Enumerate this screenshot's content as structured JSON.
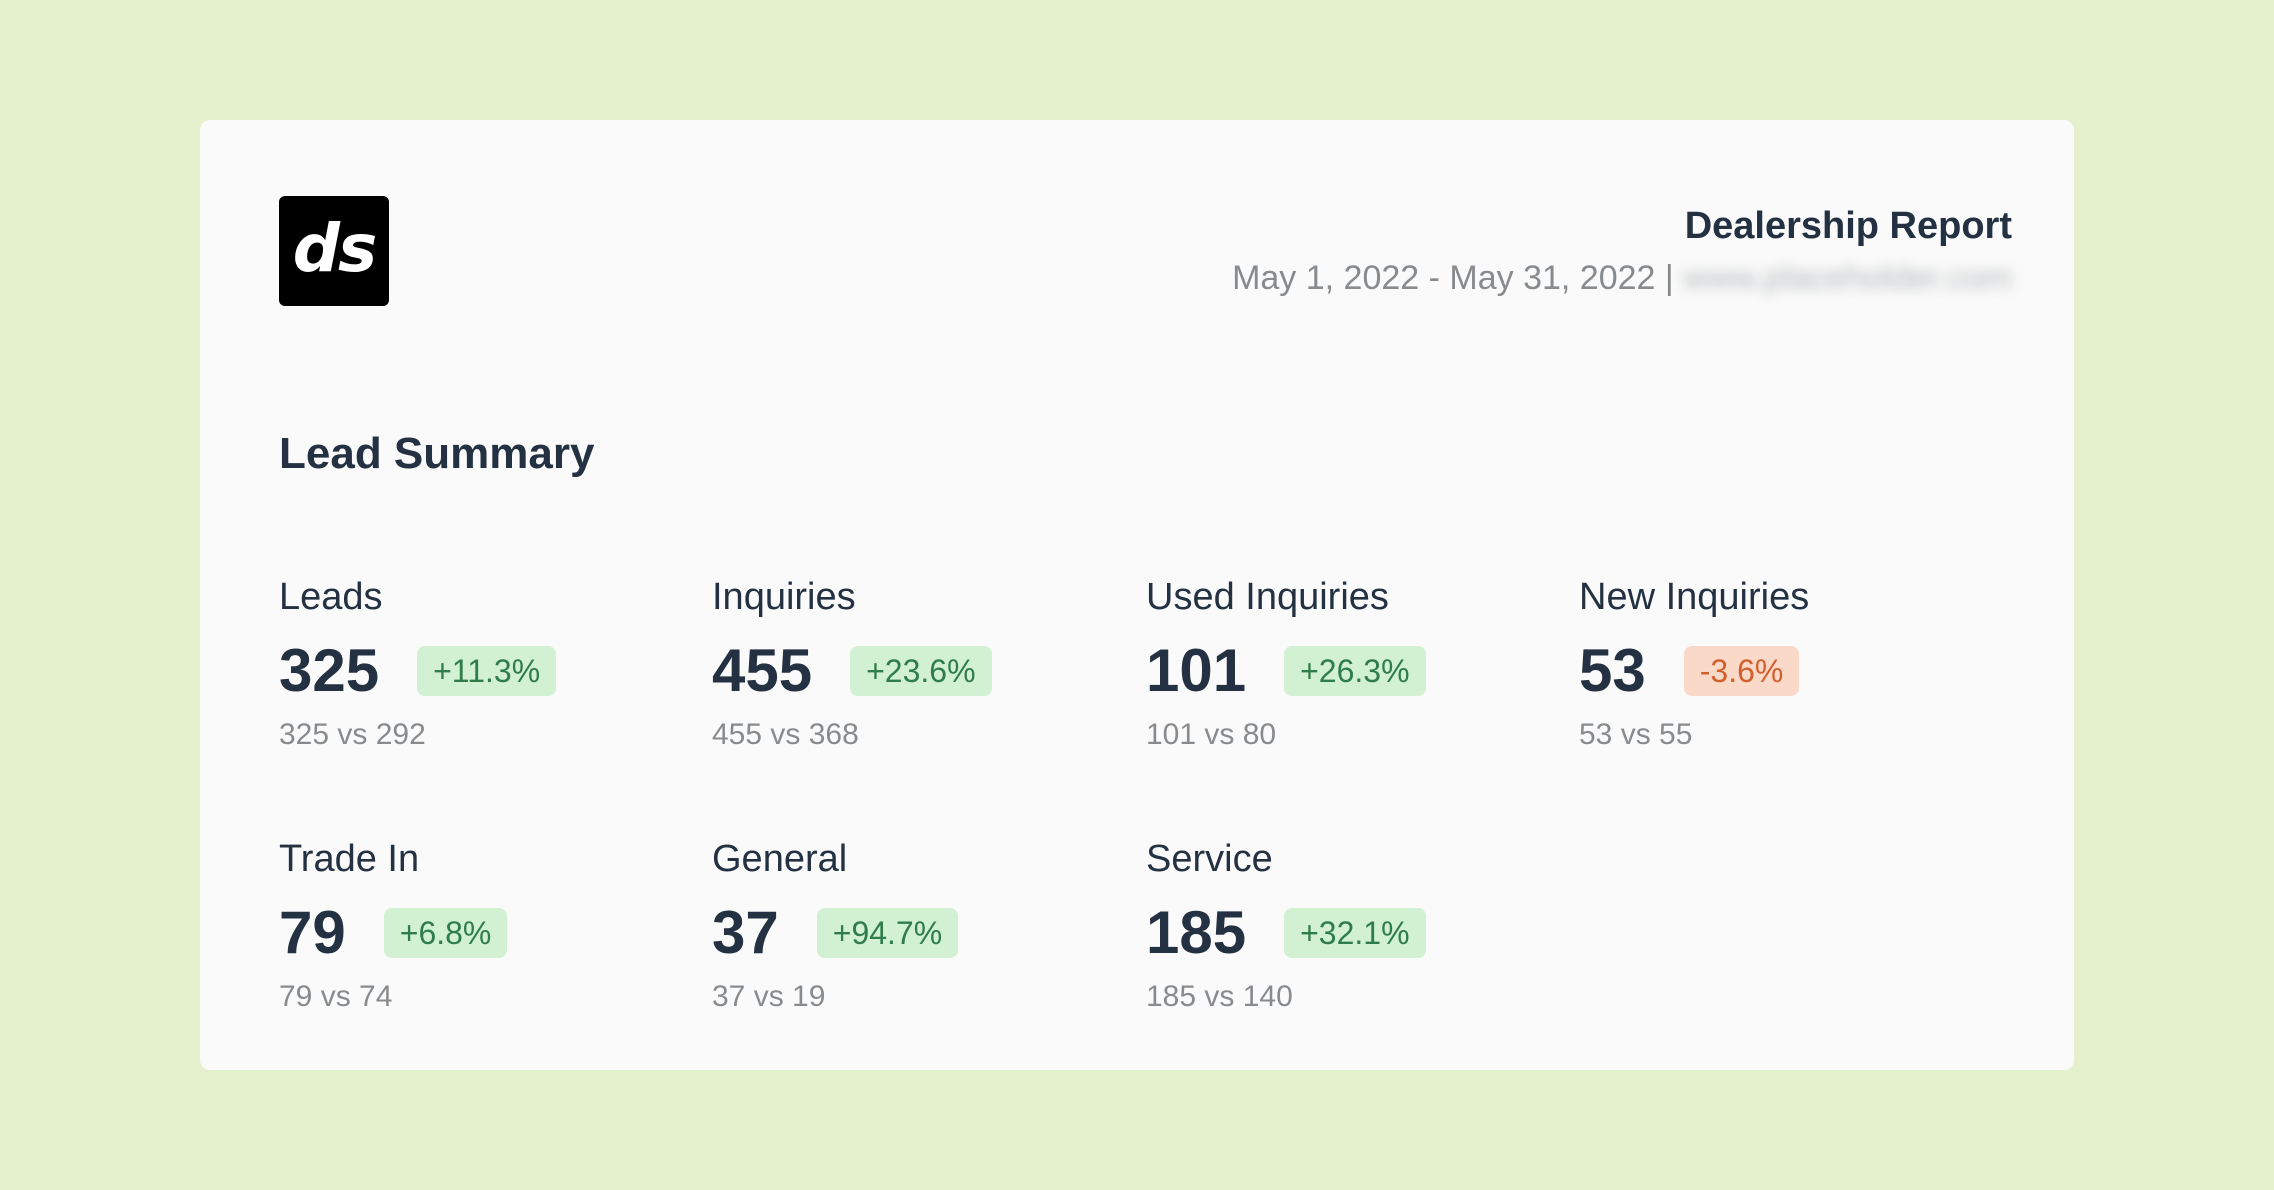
{
  "logo": {
    "text": "ds"
  },
  "header": {
    "title": "Dealership Report",
    "date_range": "May 1, 2022 - May 31, 2022 |",
    "website_blurred": "www.placeholder.com"
  },
  "section": {
    "title": "Lead Summary"
  },
  "metrics": [
    {
      "label": "Leads",
      "value": "325",
      "change": "+11.3%",
      "compare": "325 vs 292"
    },
    {
      "label": "Inquiries",
      "value": "455",
      "change": "+23.6%",
      "compare": "455 vs 368"
    },
    {
      "label": "Used Inquiries",
      "value": "101",
      "change": "+26.3%",
      "compare": "101 vs 80"
    },
    {
      "label": "New Inquiries",
      "value": "53",
      "change": "-3.6%",
      "compare": "53 vs 55"
    },
    {
      "label": "Trade In",
      "value": "79",
      "change": "+6.8%",
      "compare": "79 vs 74"
    },
    {
      "label": "General",
      "value": "37",
      "change": "+94.7%",
      "compare": "37 vs 19"
    },
    {
      "label": "Service",
      "value": "185",
      "change": "+32.1%",
      "compare": "185 vs 140"
    }
  ],
  "colors": {
    "page_background": "#e4f1cc",
    "card_background": "#fafafa",
    "text_primary": "#243142",
    "text_muted": "#888b8e",
    "badge_positive_bg": "#d2f0d2",
    "badge_positive_text": "#2f7d4a",
    "badge_negative_bg": "#fbd9c8",
    "badge_negative_text": "#d2602c"
  }
}
